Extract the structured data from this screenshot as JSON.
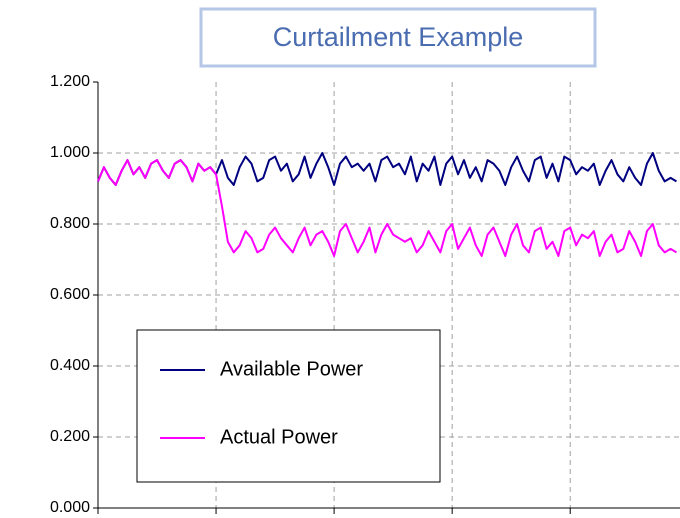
{
  "chart_data": {
    "type": "line",
    "title": "Curtailment Example",
    "x": [
      0,
      1,
      2,
      3,
      4,
      5,
      6,
      7,
      8,
      9,
      10,
      11,
      12,
      13,
      14,
      15,
      16,
      17,
      18,
      19,
      20,
      21,
      22,
      23,
      24,
      25,
      26,
      27,
      28,
      29,
      30,
      31,
      32,
      33,
      34,
      35,
      36,
      37,
      38,
      39,
      40,
      41,
      42,
      43,
      44,
      45,
      46,
      47,
      48,
      49,
      50,
      51,
      52,
      53,
      54,
      55,
      56,
      57,
      58,
      59,
      60,
      61,
      62,
      63,
      64,
      65,
      66,
      67,
      68,
      69,
      70,
      71,
      72,
      73,
      74,
      75,
      76,
      77,
      78,
      79,
      80,
      81,
      82,
      83,
      84,
      85,
      86,
      87,
      88,
      89,
      90,
      91,
      92,
      93,
      94,
      95,
      96,
      97,
      98
    ],
    "series": [
      {
        "name": "Available Power",
        "color": "#000080",
        "values": [
          0.92,
          0.96,
          0.93,
          0.91,
          0.95,
          0.98,
          0.94,
          0.96,
          0.93,
          0.97,
          0.98,
          0.95,
          0.93,
          0.97,
          0.98,
          0.96,
          0.92,
          0.97,
          0.95,
          0.96,
          0.94,
          0.98,
          0.93,
          0.91,
          0.96,
          0.99,
          0.97,
          0.92,
          0.93,
          0.98,
          0.99,
          0.95,
          0.97,
          0.92,
          0.94,
          0.99,
          0.93,
          0.97,
          1.0,
          0.96,
          0.91,
          0.97,
          0.99,
          0.96,
          0.97,
          0.95,
          0.97,
          0.92,
          0.98,
          0.99,
          0.96,
          0.97,
          0.94,
          0.99,
          0.92,
          0.97,
          0.95,
          0.99,
          0.91,
          0.97,
          0.99,
          0.94,
          0.98,
          0.93,
          0.96,
          0.92,
          0.98,
          0.97,
          0.95,
          0.91,
          0.96,
          0.99,
          0.95,
          0.92,
          0.98,
          0.99,
          0.93,
          0.97,
          0.92,
          0.99,
          0.98,
          0.94,
          0.96,
          0.95,
          0.97,
          0.91,
          0.95,
          0.98,
          0.94,
          0.92,
          0.96,
          0.93,
          0.91,
          0.97,
          1.0,
          0.95,
          0.92,
          0.93,
          0.92
        ]
      },
      {
        "name": "Actual Power",
        "color": "#ff00ff",
        "values": [
          0.92,
          0.96,
          0.93,
          0.91,
          0.95,
          0.98,
          0.94,
          0.96,
          0.93,
          0.97,
          0.98,
          0.95,
          0.93,
          0.97,
          0.98,
          0.96,
          0.92,
          0.97,
          0.95,
          0.96,
          0.94,
          0.85,
          0.75,
          0.72,
          0.74,
          0.78,
          0.76,
          0.72,
          0.73,
          0.77,
          0.79,
          0.76,
          0.74,
          0.72,
          0.76,
          0.79,
          0.74,
          0.77,
          0.78,
          0.75,
          0.71,
          0.78,
          0.8,
          0.76,
          0.72,
          0.75,
          0.79,
          0.72,
          0.77,
          0.8,
          0.77,
          0.76,
          0.75,
          0.76,
          0.72,
          0.74,
          0.78,
          0.75,
          0.72,
          0.78,
          0.8,
          0.73,
          0.76,
          0.79,
          0.74,
          0.71,
          0.77,
          0.79,
          0.75,
          0.71,
          0.77,
          0.8,
          0.74,
          0.72,
          0.78,
          0.79,
          0.73,
          0.75,
          0.71,
          0.78,
          0.79,
          0.74,
          0.77,
          0.76,
          0.78,
          0.71,
          0.75,
          0.77,
          0.72,
          0.73,
          0.78,
          0.75,
          0.71,
          0.78,
          0.8,
          0.74,
          0.72,
          0.73,
          0.72
        ]
      }
    ],
    "xlim": [
      0,
      98.6
    ],
    "xticks": [
      0,
      20,
      40,
      60,
      80
    ],
    "ylim": [
      0,
      1.2
    ],
    "yticks": [
      {
        "value": 0,
        "label": "0.000"
      },
      {
        "value": 0.2,
        "label": "0.200"
      },
      {
        "value": 0.4,
        "label": "0.400"
      },
      {
        "value": 0.6,
        "label": "0.600"
      },
      {
        "value": 0.8,
        "label": "0.800"
      },
      {
        "value": 1.0,
        "label": "1.000"
      },
      {
        "value": 1.2,
        "label": "1.200"
      }
    ],
    "grid": true,
    "legend": "lower left"
  }
}
